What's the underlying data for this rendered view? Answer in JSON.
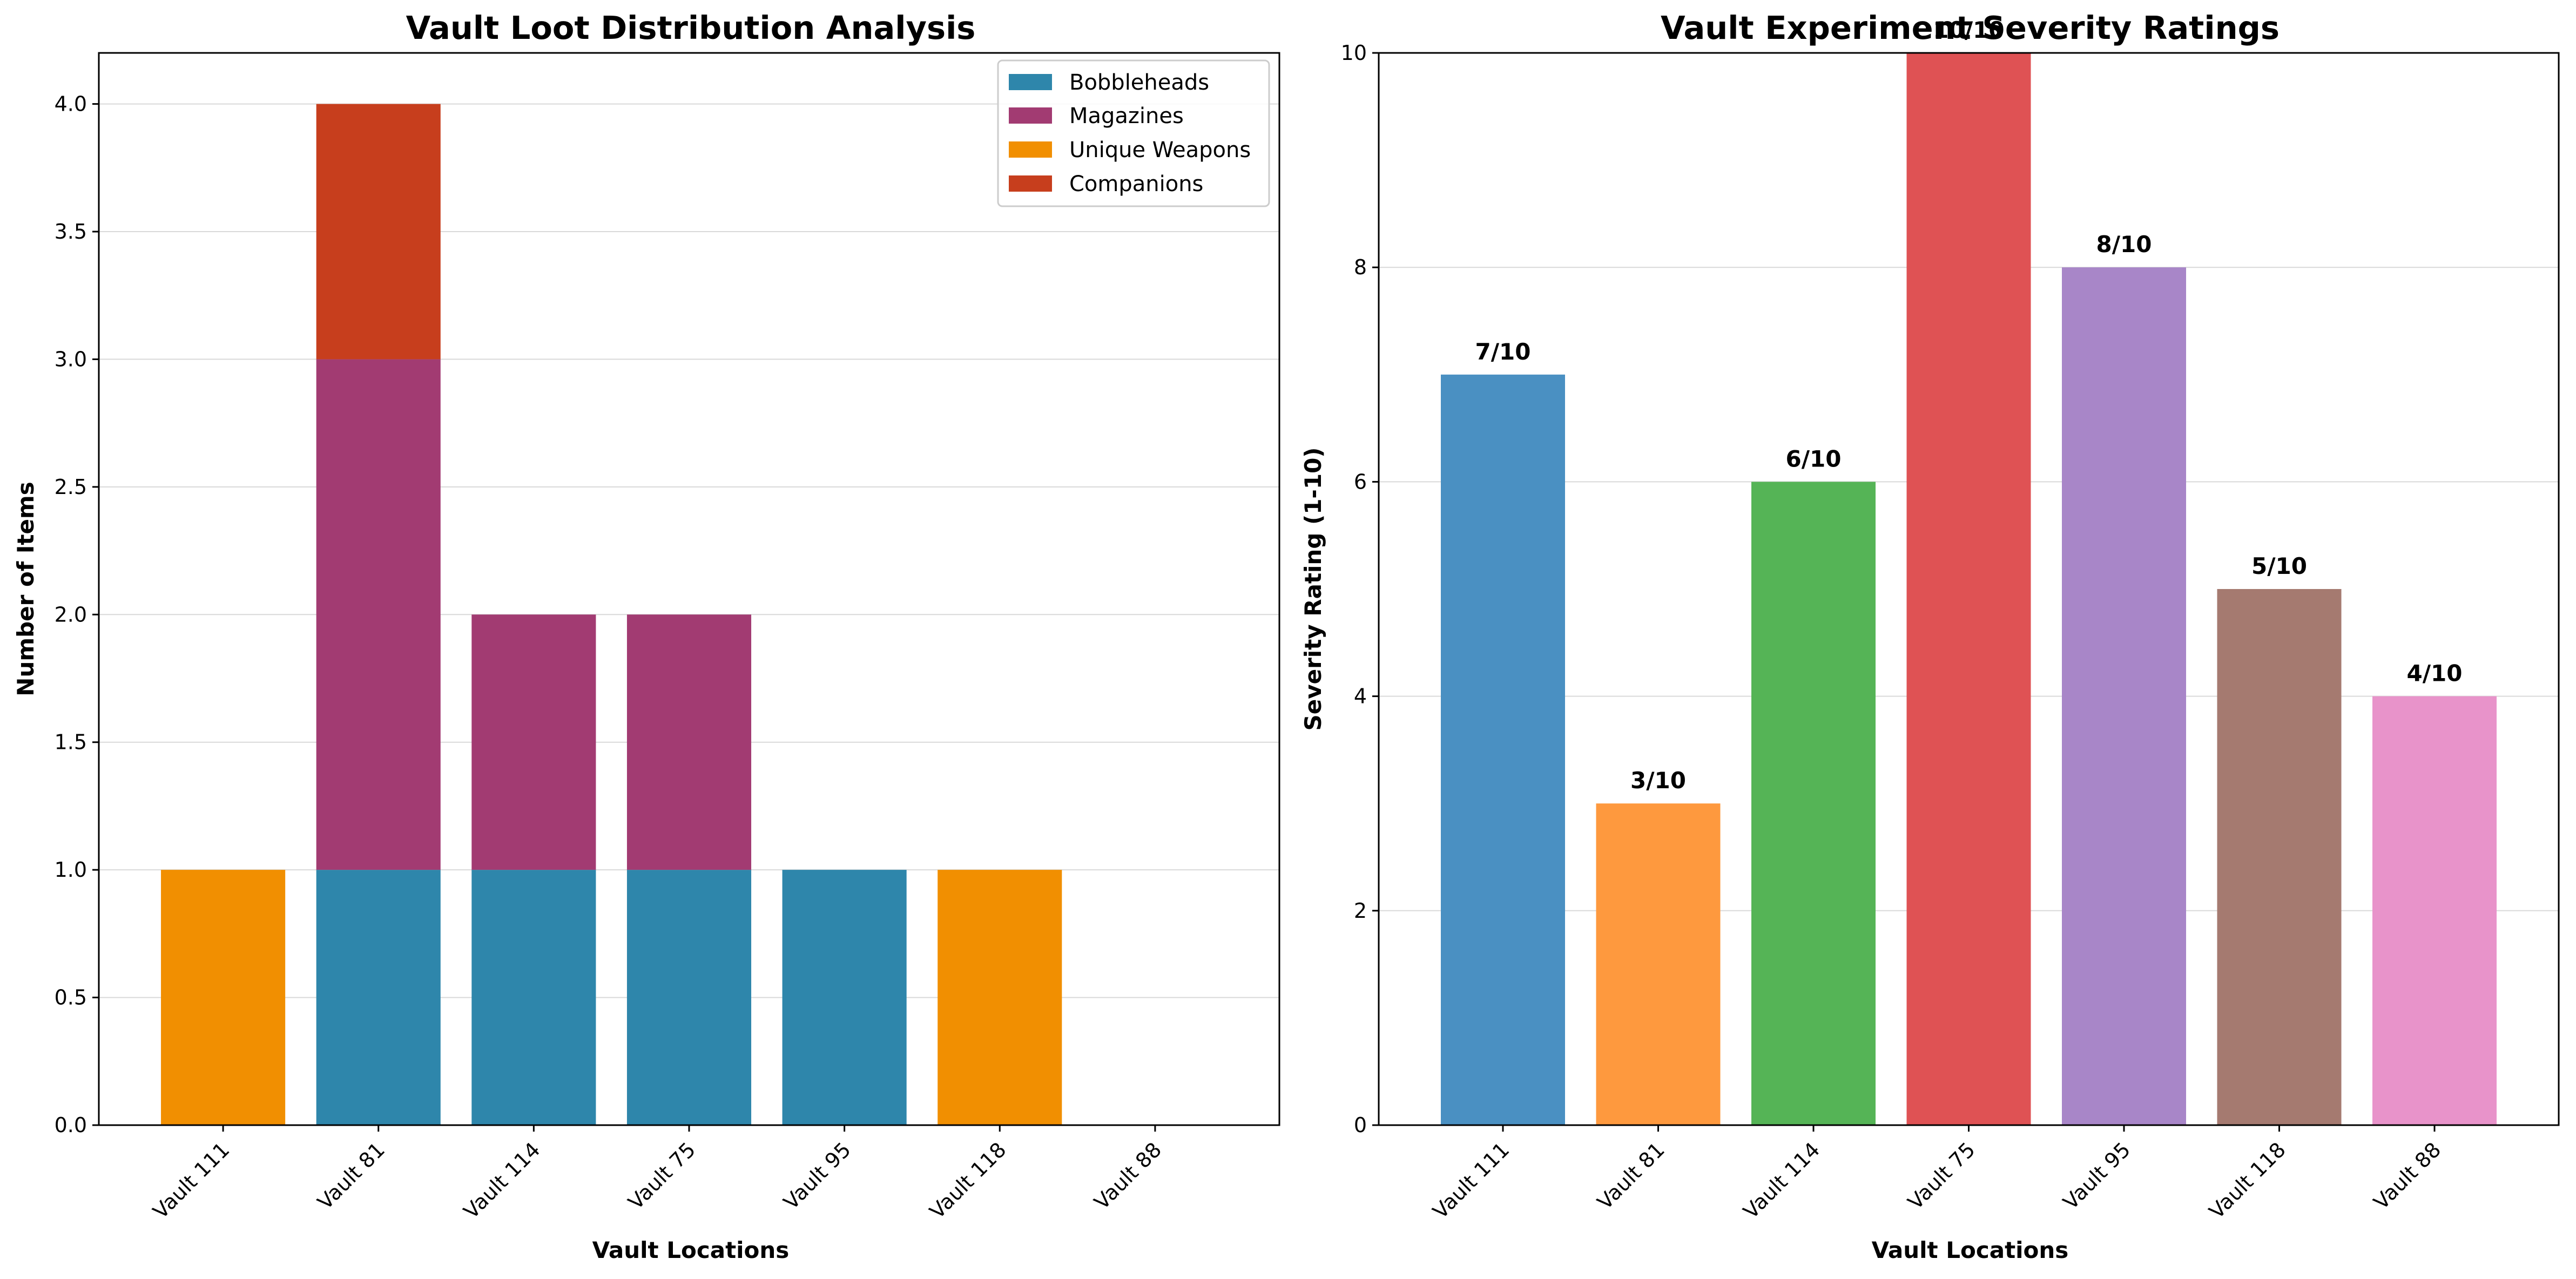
{
  "chart_data": [
    {
      "type": "bar",
      "stacked": true,
      "title": "Vault Loot Distribution Analysis",
      "xlabel": "Vault Locations",
      "ylabel": "Number of Items",
      "categories": [
        "Vault 111",
        "Vault 81",
        "Vault 114",
        "Vault 75",
        "Vault 95",
        "Vault 118",
        "Vault 88"
      ],
      "ylim": [
        0,
        4.2
      ],
      "yticks": [
        "0.0",
        "0.5",
        "1.0",
        "1.5",
        "2.0",
        "2.5",
        "3.0",
        "3.5",
        "4.0"
      ],
      "grid": true,
      "legend_position": "top-right",
      "series": [
        {
          "name": "Bobbleheads",
          "color": "#2e86ab",
          "values": [
            0,
            1,
            1,
            1,
            1,
            0,
            0
          ]
        },
        {
          "name": "Magazines",
          "color": "#a23b72",
          "values": [
            0,
            2,
            1,
            1,
            0,
            0,
            0
          ]
        },
        {
          "name": "Unique Weapons",
          "color": "#f18f01",
          "values": [
            1,
            0,
            0,
            0,
            0,
            1,
            0
          ]
        },
        {
          "name": "Companions",
          "color": "#c73e1d",
          "values": [
            0,
            1,
            0,
            0,
            0,
            0,
            0
          ]
        }
      ]
    },
    {
      "type": "bar",
      "title": "Vault Experiment Severity Ratings",
      "xlabel": "Vault Locations",
      "ylabel": "Severity Rating (1-10)",
      "categories": [
        "Vault 111",
        "Vault 81",
        "Vault 114",
        "Vault 75",
        "Vault 95",
        "Vault 118",
        "Vault 88"
      ],
      "values": [
        7,
        3,
        6,
        10,
        8,
        5,
        4
      ],
      "data_labels": [
        "7/10",
        "3/10",
        "6/10",
        "10/10",
        "8/10",
        "5/10",
        "4/10"
      ],
      "colors": [
        "#4a90c2",
        "#fe993e",
        "#55b456",
        "#df5254",
        "#a886c8",
        "#a57a70",
        "#e893ca"
      ],
      "ylim": [
        0,
        10
      ],
      "yticks": [
        "0",
        "2",
        "4",
        "6",
        "8",
        "10"
      ],
      "grid": true
    }
  ]
}
